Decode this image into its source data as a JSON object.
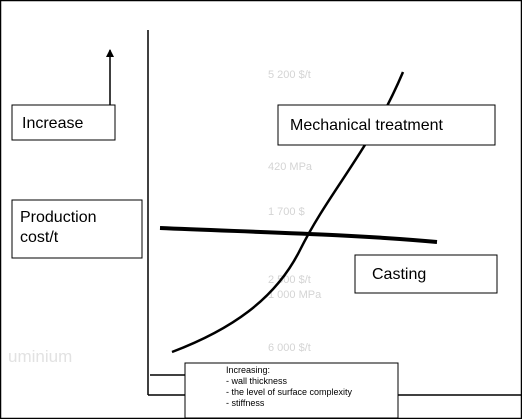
{
  "background_texts": [
    "5 200 $/t",
    "420 MPa",
    "1 700 $",
    "2 500 $/t",
    "1 000 MPa",
    "6 000 $/t",
    "uminium"
  ],
  "labels": {
    "increase": "Increase",
    "y_axis": [
      "Production",
      "cost/t"
    ],
    "mechanical": "Mechanical treatment",
    "casting": "Casting"
  },
  "caption": {
    "heading": "Increasing:",
    "items": [
      "- wall thickness",
      "- the level of surface complexity",
      "- stiffness"
    ]
  }
}
